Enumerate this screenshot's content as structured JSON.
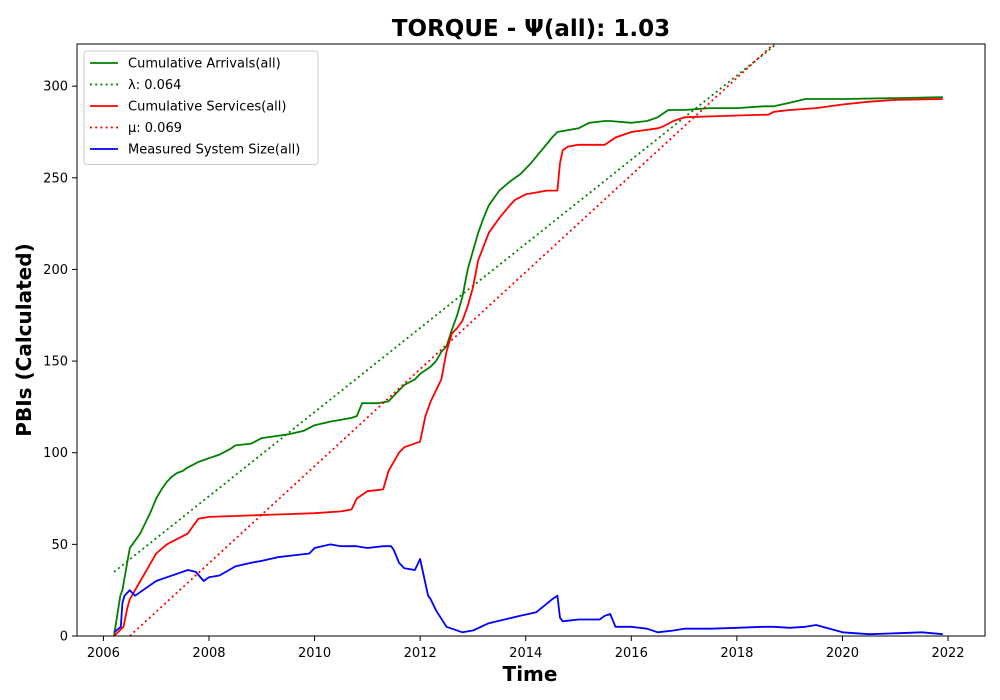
{
  "chart_data": {
    "type": "line",
    "title": "TORQUE -  Ψ(all): 1.03",
    "xlabel": "Time",
    "ylabel": "PBIs (Calculated)",
    "xlim": [
      2005.5,
      2022.7
    ],
    "ylim": [
      0,
      323
    ],
    "xticks": [
      2006,
      2008,
      2010,
      2012,
      2014,
      2016,
      2018,
      2020,
      2022
    ],
    "xtick_labels": [
      "2006",
      "2008",
      "2010",
      "2012",
      "2014",
      "2016",
      "2018",
      "2020",
      "2022"
    ],
    "yticks": [
      0,
      50,
      100,
      150,
      200,
      250,
      300
    ],
    "ytick_labels": [
      "0",
      "50",
      "100",
      "150",
      "200",
      "250",
      "300"
    ],
    "grid": false,
    "legend_position": "top-left",
    "series": [
      {
        "name": "Cumulative Arrivals(all)",
        "color": "#008000",
        "style": "solid",
        "x": [
          2006.2,
          2006.32,
          2006.36,
          2006.42,
          2006.5,
          2006.6,
          2006.7,
          2006.8,
          2006.9,
          2007.0,
          2007.1,
          2007.2,
          2007.3,
          2007.4,
          2007.5,
          2007.6,
          2007.8,
          2008.0,
          2008.2,
          2008.4,
          2008.5,
          2008.8,
          2009.0,
          2009.5,
          2009.8,
          2010.0,
          2010.3,
          2010.5,
          2010.7,
          2010.8,
          2010.9,
          2011.2,
          2011.4,
          2011.5,
          2011.7,
          2011.9,
          2012.0,
          2012.2,
          2012.3,
          2012.4,
          2012.5,
          2012.6,
          2012.7,
          2012.8,
          2012.9,
          2013.0,
          2013.1,
          2013.2,
          2013.3,
          2013.5,
          2013.7,
          2013.9,
          2014.1,
          2014.3,
          2014.5,
          2014.6,
          2014.8,
          2015.0,
          2015.2,
          2015.5,
          2015.6,
          2016.0,
          2016.3,
          2016.5,
          2016.7,
          2017.0,
          2017.5,
          2018.0,
          2018.5,
          2018.7,
          2019.0,
          2019.3,
          2020.0,
          2021.0,
          2021.9
        ],
        "y": [
          0,
          22,
          25,
          35,
          48,
          52,
          56,
          62,
          68,
          75,
          80,
          84,
          87,
          89,
          90,
          92,
          95,
          97,
          99,
          102,
          104,
          105,
          108,
          110,
          112,
          115,
          117,
          118,
          119,
          120,
          127,
          127,
          128,
          131,
          137,
          140,
          143,
          147,
          150,
          155,
          158,
          167,
          175,
          185,
          200,
          210,
          220,
          228,
          235,
          243,
          248,
          252,
          258,
          265,
          272,
          275,
          276,
          277,
          280,
          281,
          281,
          280,
          281,
          283,
          287,
          287,
          288,
          288,
          289,
          289,
          291,
          293,
          293,
          293.5,
          294
        ]
      },
      {
        "name": "λ: 0.064",
        "color": "#008000",
        "style": "dotted",
        "x": [
          2006.2,
          2018.75
        ],
        "y": [
          35,
          323
        ]
      },
      {
        "name": "Cumulative Services(all)",
        "color": "#ff0000",
        "style": "solid",
        "x": [
          2006.2,
          2006.38,
          2006.45,
          2006.5,
          2006.6,
          2006.7,
          2006.8,
          2006.9,
          2007.0,
          2007.2,
          2007.4,
          2007.6,
          2007.7,
          2007.8,
          2008.0,
          2008.5,
          2009.0,
          2009.5,
          2010.0,
          2010.5,
          2010.7,
          2010.75,
          2010.8,
          2011.0,
          2011.3,
          2011.4,
          2011.6,
          2011.7,
          2012.0,
          2012.1,
          2012.2,
          2012.4,
          2012.5,
          2012.6,
          2012.7,
          2012.8,
          2012.9,
          2013.0,
          2013.1,
          2013.3,
          2013.5,
          2013.7,
          2013.8,
          2014.0,
          2014.2,
          2014.4,
          2014.6,
          2014.65,
          2014.7,
          2014.8,
          2015.0,
          2015.5,
          2015.7,
          2016.0,
          2016.5,
          2016.6,
          2016.8,
          2017.0,
          2017.5,
          2018.0,
          2018.6,
          2018.7,
          2019.0,
          2019.5,
          2020.0,
          2020.5,
          2021.0,
          2021.9
        ],
        "y": [
          0,
          5,
          15,
          20,
          25,
          30,
          35,
          40,
          45,
          50,
          53,
          56,
          60,
          64,
          65,
          65.5,
          66,
          66.5,
          67,
          68,
          69,
          72,
          75,
          79,
          80,
          90,
          100,
          103,
          106,
          120,
          128,
          140,
          155,
          165,
          168,
          172,
          180,
          190,
          205,
          220,
          228,
          235,
          238,
          241,
          242,
          243,
          243,
          258,
          265,
          267,
          268,
          268,
          272,
          275,
          277,
          278,
          281,
          283,
          283.5,
          284,
          284.5,
          286,
          287,
          288,
          290,
          291.5,
          292.5,
          293
        ]
      },
      {
        "name": "μ: 0.069",
        "color": "#ff0000",
        "style": "dotted",
        "x": [
          2006.5,
          2018.7
        ],
        "y": [
          0,
          323
        ]
      },
      {
        "name": "Measured System Size(all)",
        "color": "#0000ff",
        "style": "solid",
        "x": [
          2006.2,
          2006.33,
          2006.36,
          2006.4,
          2006.5,
          2006.6,
          2006.8,
          2007.0,
          2007.2,
          2007.4,
          2007.6,
          2007.75,
          2007.9,
          2008.0,
          2008.2,
          2008.5,
          2008.8,
          2009.0,
          2009.3,
          2009.6,
          2009.9,
          2010.0,
          2010.3,
          2010.5,
          2010.8,
          2011.0,
          2011.3,
          2011.45,
          2011.5,
          2011.6,
          2011.7,
          2011.9,
          2012.0,
          2012.15,
          2012.2,
          2012.3,
          2012.5,
          2012.8,
          2013.0,
          2013.3,
          2013.6,
          2013.9,
          2014.2,
          2014.5,
          2014.6,
          2014.65,
          2014.7,
          2015.0,
          2015.4,
          2015.5,
          2015.6,
          2015.7,
          2016.0,
          2016.3,
          2016.5,
          2016.8,
          2017.0,
          2017.5,
          2018.0,
          2018.5,
          2018.7,
          2019.0,
          2019.3,
          2019.5,
          2020.0,
          2020.5,
          2021.0,
          2021.5,
          2021.9
        ],
        "y": [
          2,
          5,
          18,
          22,
          25,
          22,
          26,
          30,
          32,
          34,
          36,
          35,
          30,
          32,
          33,
          38,
          40,
          41,
          43,
          44,
          45,
          48,
          50,
          49,
          49,
          48,
          49,
          49,
          47,
          40,
          37,
          36,
          42,
          22,
          20,
          14,
          5,
          2,
          3,
          7,
          9,
          11,
          13,
          20,
          22,
          10,
          8,
          9,
          9,
          11,
          12,
          5,
          5,
          4,
          2,
          3,
          4,
          4,
          4.5,
          5,
          5,
          4.5,
          5,
          6,
          2,
          1,
          1.5,
          2,
          1
        ]
      }
    ]
  }
}
